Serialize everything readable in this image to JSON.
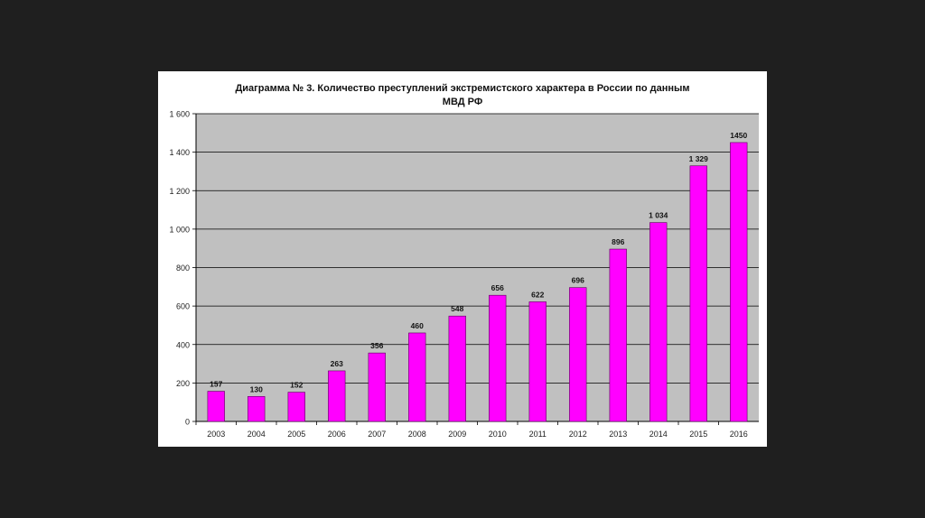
{
  "chart_data": {
    "type": "bar",
    "title_line1": "Диаграмма № 3. Количество преступлений экстремистского характера в России по данным",
    "title_line2": "МВД РФ",
    "categories": [
      "2003",
      "2004",
      "2005",
      "2006",
      "2007",
      "2008",
      "2009",
      "2010",
      "2011",
      "2012",
      "2013",
      "2014",
      "2015",
      "2016"
    ],
    "values": [
      157,
      130,
      152,
      263,
      356,
      460,
      548,
      656,
      622,
      696,
      896,
      1034,
      1329,
      1450
    ],
    "value_labels": [
      "157",
      "130",
      "152",
      "263",
      "356",
      "460",
      "548",
      "656",
      "622",
      "696",
      "896",
      "1 034",
      "1 329",
      "1450"
    ],
    "yticks": [
      0,
      200,
      400,
      600,
      800,
      1000,
      1200,
      1400,
      1600
    ],
    "ytick_labels": [
      "0",
      "200",
      "400",
      "600",
      "800",
      "1 000",
      "1 200",
      "1 400",
      "1 600"
    ],
    "ylim": [
      0,
      1600
    ],
    "grid": true,
    "legend": "none",
    "colors": {
      "bar": "#ff00ff",
      "plot_bg": "#c0c0c0",
      "grid": "#000000"
    }
  }
}
